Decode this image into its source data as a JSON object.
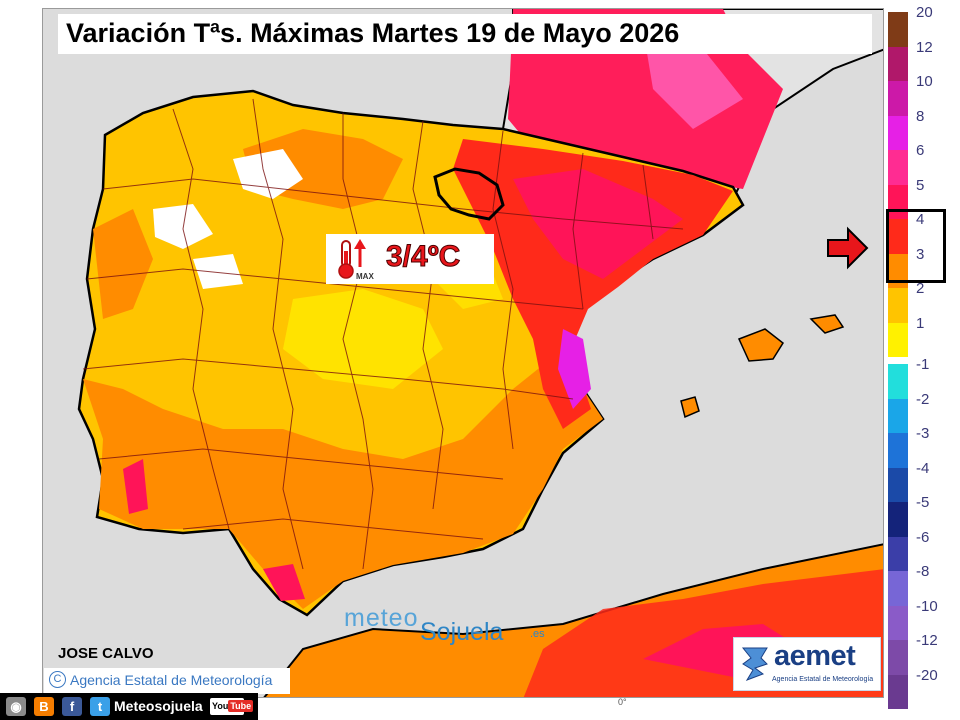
{
  "title": "Variación Tªs. Máximas Martes 19 de Mayo 2026",
  "anomaly": {
    "value": "3/4ºC",
    "icon_label": "MAX",
    "icon": "thermometer-up-icon"
  },
  "logo": {
    "part1": "meteo",
    "part2": "Sojuela",
    "part3": ".es"
  },
  "author": "JOSE CALVO",
  "credit": "Agencia Estatal de Meteorología",
  "aemet": {
    "name": "aemet",
    "subtitle": "Agencia Estatal de Meteorología"
  },
  "social": {
    "handle": "Meteosojuela",
    "youtube_label": "You",
    "youtube_tube": "Tube"
  },
  "axis_mark": "0°",
  "legend": {
    "positive": [
      {
        "label": "20",
        "color": "#7f3b17"
      },
      {
        "label": "12",
        "color": "#b0186a"
      },
      {
        "label": "10",
        "color": "#cc19a8"
      },
      {
        "label": "8",
        "color": "#e620e6"
      },
      {
        "label": "6",
        "color": "#ff2c92"
      },
      {
        "label": "5",
        "color": "#ff1458"
      },
      {
        "label": "4",
        "color": "#ff2a1a"
      },
      {
        "label": "3",
        "color": "#ff8c00"
      },
      {
        "label": "2",
        "color": "#ffc400"
      },
      {
        "label": "1",
        "color": "#fff100"
      }
    ],
    "negative": [
      {
        "label": "-1",
        "color": "#22dedc"
      },
      {
        "label": "-2",
        "color": "#1aa6e8"
      },
      {
        "label": "-3",
        "color": "#1e73d8"
      },
      {
        "label": "-4",
        "color": "#1b4aa8"
      },
      {
        "label": "-5",
        "color": "#14237a"
      },
      {
        "label": "-6",
        "color": "#3b3ea8"
      },
      {
        "label": "-8",
        "color": "#7766d6"
      },
      {
        "label": "-10",
        "color": "#8a5bc8"
      },
      {
        "label": "-12",
        "color": "#7d4aa8"
      },
      {
        "label": "-20",
        "color": "#6a3a90"
      }
    ],
    "highlighted": [
      "4",
      "3"
    ]
  }
}
